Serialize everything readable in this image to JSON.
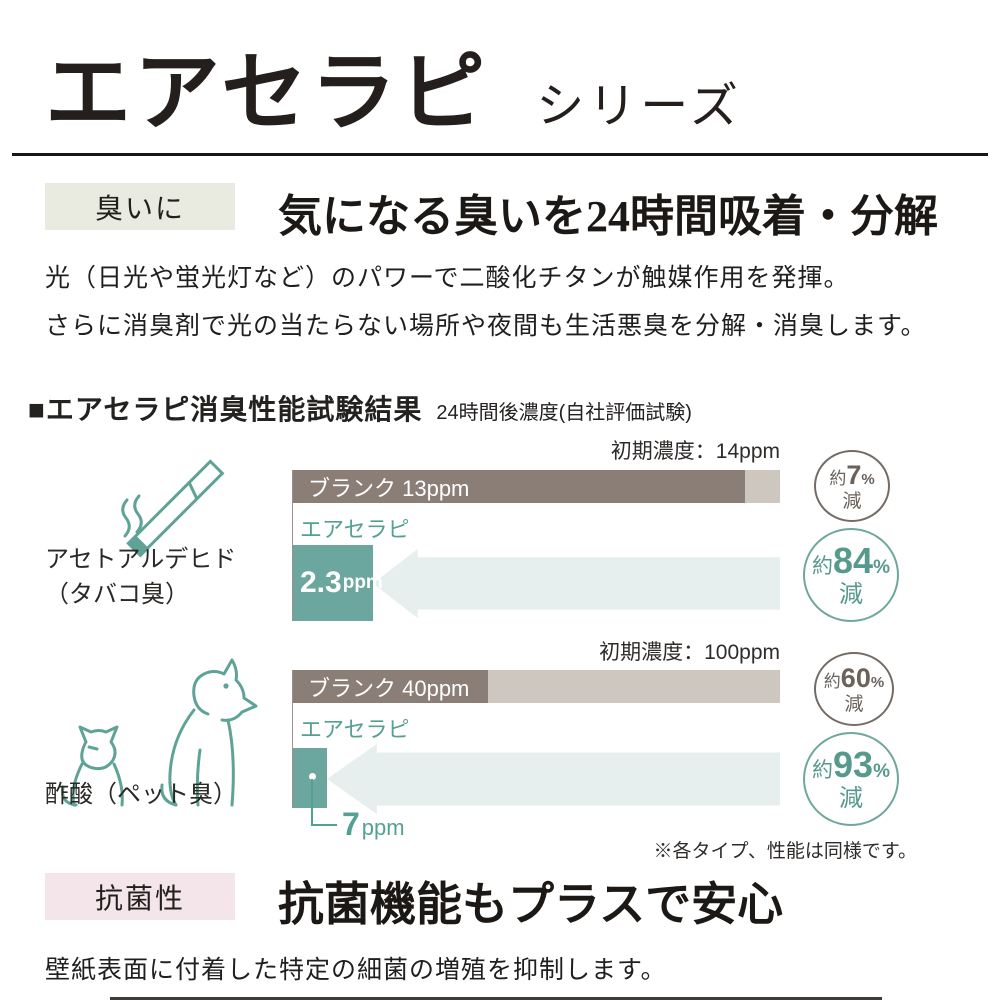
{
  "header": {
    "title": "エアセラピ",
    "series": "シリーズ"
  },
  "deodorant": {
    "tag": "臭いに",
    "heading": "気になる臭いを24時間吸着・分解",
    "body1": "光（日光や蛍光灯など）のパワーで二酸化チタンが触媒作用を発揮。",
    "body2": "さらに消臭剤で光の当たらない場所や夜間も生活悪臭を分解・消臭します。"
  },
  "results": {
    "title": "■エアセラピ消臭性能試験結果",
    "subtitle": "24時間後濃度(自社評価試験)",
    "footnote": "※各タイプ、性能は同様です。"
  },
  "charts": [
    {
      "initial": "初期濃度：14ppm",
      "icon": "cigarette-icon",
      "subject1": "アセトアルデヒド",
      "subject2": "（タバコ臭）",
      "blank_bar": "ブランク 13ppm",
      "product_label": "エアセラピ",
      "value_num": "2.3",
      "value_unit": "ppm",
      "blank_cut": {
        "about": "約",
        "pct": "7",
        "unit": "%",
        "down": "減"
      },
      "product_cut": {
        "about": "約",
        "pct": "84",
        "unit": "%",
        "down": "減"
      }
    },
    {
      "initial": "初期濃度：100ppm",
      "icon": "pets-icon",
      "subject1": "酢酸（ペット臭）",
      "subject2": "",
      "blank_bar": "ブランク 40ppm",
      "product_label": "エアセラピ",
      "value_num": "7",
      "value_unit": "ppm",
      "blank_cut": {
        "about": "約",
        "pct": "60",
        "unit": "%",
        "down": "減"
      },
      "product_cut": {
        "about": "約",
        "pct": "93",
        "unit": "%",
        "down": "減"
      }
    }
  ],
  "chart_data": [
    {
      "type": "bar",
      "title": "アセトアルデヒド（タバコ臭）",
      "subtitle": "24時間後濃度(自社評価試験)",
      "unit": "ppm",
      "initial_concentration": 14,
      "categories": [
        "ブランク",
        "エアセラピ"
      ],
      "values": [
        13,
        2.3
      ],
      "reductions_pct": [
        7,
        84
      ],
      "xlim": [
        0,
        14
      ],
      "orientation": "horizontal",
      "grid": false
    },
    {
      "type": "bar",
      "title": "酢酸（ペット臭）",
      "subtitle": "24時間後濃度(自社評価試験)",
      "unit": "ppm",
      "initial_concentration": 100,
      "categories": [
        "ブランク",
        "エアセラピ"
      ],
      "values": [
        40,
        7
      ],
      "reductions_pct": [
        60,
        93
      ],
      "xlim": [
        0,
        100
      ],
      "orientation": "horizontal",
      "grid": false
    }
  ],
  "antibacterial": {
    "tag": "抗菌性",
    "heading": "抗菌機能もプラスで安心",
    "body": "壁紙表面に付着した特定の細菌の増殖を抑制します。"
  },
  "colors": {
    "teal": "#5fa396",
    "teal_bar": "#6ba79e",
    "bar_dark": "#8a7e77",
    "bar_light": "#cec7c0",
    "arrow_fill": "#e6efed",
    "tag_green_bg": "#e9ebe0",
    "tag_pink_bg": "#f4e5ea",
    "circle_gray_border": "#746b65"
  }
}
